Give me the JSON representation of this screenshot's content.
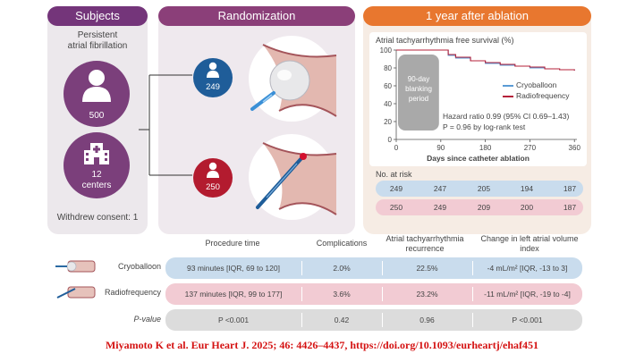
{
  "subjects": {
    "header": "Subjects",
    "condition": [
      "Persistent",
      "atrial fibrillation"
    ],
    "patients": "500",
    "centers_count": "12",
    "centers_label": "centers",
    "withdrew": "Withdrew consent: 1"
  },
  "randomization": {
    "header": "Randomization",
    "cryo_n": "249",
    "rf_n": "250"
  },
  "outcome": {
    "header": "1 year after ablation",
    "chart_title": "Atrial tachyarrhythmia free survival (%)",
    "blanking": [
      "90-day",
      "blanking",
      "period"
    ],
    "legend_cryo": "Cryoballoon",
    "legend_rf": "Radiofrequency",
    "hazard": "Hazard ratio 0.99 (95% CI 0.69–1.43)",
    "pvalue": "P = 0.96 by log-rank test",
    "xlabel": "Days since catheter ablation",
    "at_risk_label": "No. at risk",
    "at_risk_cryo": [
      "249",
      "247",
      "205",
      "194",
      "187"
    ],
    "at_risk_rf": [
      "250",
      "249",
      "209",
      "200",
      "187"
    ]
  },
  "chart_data": {
    "type": "line",
    "title": "Atrial tachyarrhythmia free survival (%)",
    "xlabel": "Days since catheter ablation",
    "ylabel": "",
    "x_ticks": [
      0,
      90,
      180,
      270,
      360
    ],
    "y_ticks": [
      0,
      20,
      40,
      60,
      80,
      100
    ],
    "xlim": [
      0,
      365
    ],
    "ylim": [
      0,
      100
    ],
    "blanking_period_days": [
      0,
      90
    ],
    "series": [
      {
        "name": "Cryoballoon",
        "color": "#5b9bd5",
        "x": [
          0,
          90,
          105,
          120,
          150,
          180,
          210,
          240,
          270,
          300,
          330,
          360
        ],
        "y": [
          100,
          100,
          94,
          91,
          88,
          85,
          83,
          82,
          80,
          79,
          78,
          77
        ]
      },
      {
        "name": "Radiofrequency",
        "color": "#b5203a",
        "x": [
          0,
          90,
          105,
          120,
          150,
          180,
          210,
          240,
          270,
          300,
          330,
          360
        ],
        "y": [
          100,
          100,
          95,
          92,
          88,
          86,
          84,
          82,
          81,
          79,
          78,
          77
        ]
      }
    ]
  },
  "table": {
    "headers": [
      "Procedure time",
      "Complications",
      "Atrial tachyarrhythmia recurrence",
      "Change in left atrial volume index"
    ],
    "rows": [
      {
        "label": "Cryoballoon",
        "cells": [
          "93 minutes [IQR, 69 to 120]",
          "2.0%",
          "22.5%",
          "-4 mL/m² [IQR, -13 to 3]"
        ]
      },
      {
        "label": "Radiofrequency",
        "cells": [
          "137 minutes [IQR, 99 to 177]",
          "3.6%",
          "23.2%",
          "-11 mL/m² [IQR, -19 to -4]"
        ]
      },
      {
        "label": "P-value",
        "cells": [
          "P <0.001",
          "0.42",
          "0.96",
          "P <0.001"
        ]
      }
    ]
  },
  "citation": {
    "text": "Miyamoto K et al. Eur Heart J. 2025; 46: 4426–4437, ",
    "link": "https://doi.org/10.1093/eurheartj/ehaf451"
  },
  "colors": {
    "subjects": "#7a3a7a",
    "randomization": "#8a3e78",
    "outcome": "#e8772f",
    "cryo_row": "#c9dced",
    "rf_row": "#f2cbd3",
    "p_row": "#dcdcdc",
    "cryo": "#2b6aa3",
    "rf": "#b5203a"
  }
}
